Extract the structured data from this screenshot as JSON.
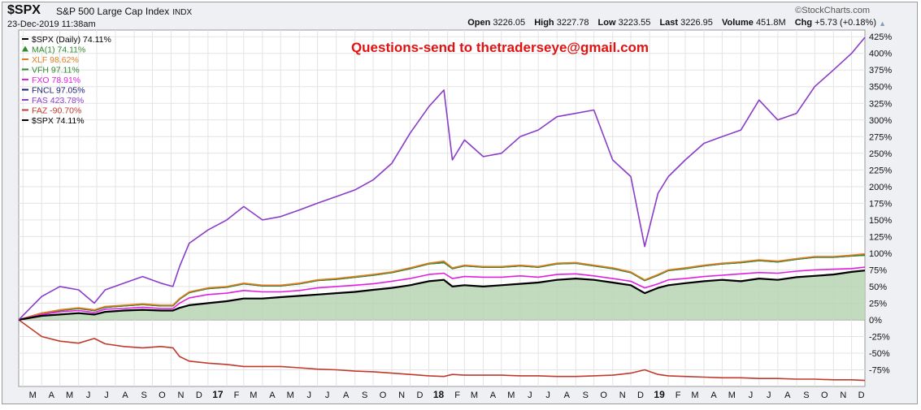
{
  "header": {
    "symbol": "$SPX",
    "index_name": "S&P 500 Large Cap Index",
    "exchange": "INDX",
    "datetime": "23-Dec-2019 11:38am",
    "brand": "©StockCharts.com",
    "ohlc": {
      "open_label": "Open",
      "open": "3226.05",
      "high_label": "High",
      "high": "3227.78",
      "low_label": "Low",
      "low": "3223.55",
      "last_label": "Last",
      "last": "3226.95",
      "volume_label": "Volume",
      "volume": "451.8M",
      "chg_label": "Chg",
      "chg": "+5.73 (+0.18%)"
    },
    "arrow_icon": "up-triangle-icon"
  },
  "annotation": "Questions-send to thetraderseye@gmail.com",
  "colors": {
    "spx": "#000000",
    "ma": "#2e8b2e",
    "xlf": "#e07b22",
    "vfh": "#2a8a2a",
    "fxo": "#e020e0",
    "fncl": "#1c1c6e",
    "fas": "#8a3cc8",
    "faz": "#c0392b",
    "area": "#b7d3b3",
    "annotation": "#e21212"
  },
  "chart_data": {
    "type": "line",
    "title": "$SPX S&P 500 Large Cap Index INDX",
    "x_range": [
      "2016-02-23",
      "2019-12-23"
    ],
    "y_unit": "%",
    "ylim": [
      -100,
      435
    ],
    "grid": true,
    "legend_placement": "top-left",
    "y_ticks": [
      "425%",
      "400%",
      "375%",
      "350%",
      "325%",
      "300%",
      "275%",
      "250%",
      "225%",
      "200%",
      "175%",
      "150%",
      "125%",
      "100%",
      "75%",
      "50%",
      "25%",
      "0%",
      "-25%",
      "-50%",
      "-75%"
    ],
    "x_ticks": [
      "M",
      "A",
      "M",
      "J",
      "J",
      "A",
      "S",
      "O",
      "N",
      "D",
      "17",
      "F",
      "M",
      "A",
      "M",
      "J",
      "J",
      "A",
      "S",
      "O",
      "N",
      "D",
      "18",
      "F",
      "M",
      "A",
      "M",
      "J",
      "J",
      "A",
      "S",
      "O",
      "N",
      "D",
      "19",
      "F",
      "M",
      "A",
      "M",
      "J",
      "J",
      "A",
      "S",
      "O",
      "N",
      "D"
    ],
    "x_ticks_bold": [
      "17",
      "18",
      "19"
    ],
    "legend": [
      {
        "key": "spx",
        "text": "$SPX (Daily) 74.11%",
        "marker": "dash"
      },
      {
        "key": "ma",
        "text": "MA(1) 74.11%",
        "marker": "triangle"
      },
      {
        "key": "xlf",
        "text": "XLF 98.62%",
        "marker": "dash"
      },
      {
        "key": "vfh",
        "text": "VFH 97.11%",
        "marker": "dash"
      },
      {
        "key": "fxo",
        "text": "FXO 78.91%",
        "marker": "dash"
      },
      {
        "key": "fncl",
        "text": "FNCL 97.05%",
        "marker": "dash"
      },
      {
        "key": "fas",
        "text": "FAS 423.78%",
        "marker": "dash"
      },
      {
        "key": "faz",
        "text": "FAZ -90.70%",
        "marker": "dash"
      },
      {
        "key": "spx2",
        "text": "$SPX 74.11%",
        "marker": "dash"
      }
    ],
    "x": [
      "2016-02-23",
      "2016-04-01",
      "2016-05-01",
      "2016-06-01",
      "2016-06-27",
      "2016-07-15",
      "2016-08-15",
      "2016-09-15",
      "2016-10-15",
      "2016-11-04",
      "2016-11-15",
      "2016-12-01",
      "2017-01-01",
      "2017-02-01",
      "2017-03-01",
      "2017-04-01",
      "2017-05-01",
      "2017-06-01",
      "2017-07-01",
      "2017-08-01",
      "2017-09-01",
      "2017-10-01",
      "2017-11-01",
      "2017-12-01",
      "2018-01-01",
      "2018-01-26",
      "2018-02-09",
      "2018-03-01",
      "2018-04-01",
      "2018-05-01",
      "2018-06-01",
      "2018-07-01",
      "2018-08-01",
      "2018-09-01",
      "2018-10-01",
      "2018-11-01",
      "2018-12-01",
      "2018-12-24",
      "2019-01-15",
      "2019-02-01",
      "2019-03-01",
      "2019-04-01",
      "2019-05-01",
      "2019-06-01",
      "2019-07-01",
      "2019-08-01",
      "2019-09-01",
      "2019-10-01",
      "2019-11-01",
      "2019-12-01",
      "2019-12-23"
    ],
    "series": [
      {
        "name": "FAS",
        "key": "fas",
        "values": [
          0,
          35,
          50,
          45,
          25,
          45,
          55,
          65,
          55,
          50,
          80,
          115,
          135,
          150,
          170,
          150,
          155,
          165,
          175,
          185,
          195,
          210,
          235,
          280,
          320,
          345,
          240,
          270,
          245,
          250,
          275,
          285,
          305,
          310,
          315,
          240,
          215,
          110,
          190,
          215,
          240,
          265,
          275,
          285,
          330,
          300,
          310,
          350,
          375,
          400,
          424
        ]
      },
      {
        "name": "XLF",
        "key": "xlf",
        "values": [
          0,
          10,
          15,
          18,
          15,
          20,
          22,
          24,
          22,
          22,
          32,
          42,
          48,
          50,
          55,
          52,
          52,
          55,
          60,
          62,
          65,
          68,
          72,
          78,
          85,
          88,
          78,
          82,
          80,
          80,
          82,
          80,
          85,
          86,
          82,
          78,
          72,
          60,
          68,
          75,
          78,
          82,
          85,
          87,
          90,
          88,
          92,
          95,
          95,
          97,
          99
        ]
      },
      {
        "name": "VFH",
        "key": "vfh",
        "values": [
          0,
          10,
          14,
          17,
          14,
          19,
          21,
          23,
          21,
          21,
          31,
          41,
          47,
          49,
          54,
          51,
          51,
          54,
          59,
          61,
          64,
          67,
          71,
          77,
          84,
          86,
          77,
          81,
          79,
          79,
          81,
          79,
          84,
          85,
          81,
          77,
          71,
          59,
          67,
          74,
          77,
          81,
          84,
          86,
          89,
          87,
          91,
          94,
          94,
          96,
          97
        ]
      },
      {
        "name": "FNCL",
        "key": "fncl",
        "values": [
          0,
          10,
          14,
          17,
          14,
          19,
          21,
          23,
          21,
          21,
          31,
          41,
          47,
          49,
          54,
          51,
          51,
          54,
          59,
          61,
          64,
          67,
          71,
          77,
          84,
          86,
          77,
          81,
          79,
          79,
          81,
          79,
          84,
          85,
          81,
          77,
          71,
          59,
          67,
          74,
          77,
          81,
          84,
          86,
          89,
          87,
          91,
          94,
          94,
          96,
          97
        ]
      },
      {
        "name": "FXO",
        "key": "fxo",
        "values": [
          0,
          8,
          12,
          14,
          11,
          16,
          17,
          19,
          17,
          17,
          25,
          33,
          38,
          40,
          44,
          42,
          42,
          44,
          48,
          50,
          52,
          54,
          58,
          62,
          68,
          70,
          62,
          65,
          64,
          64,
          66,
          64,
          68,
          69,
          66,
          62,
          58,
          48,
          54,
          60,
          62,
          65,
          67,
          69,
          71,
          70,
          73,
          75,
          76,
          77,
          79
        ]
      },
      {
        "name": "$SPX",
        "key": "spx",
        "values": [
          0,
          6,
          8,
          10,
          8,
          12,
          14,
          15,
          14,
          14,
          18,
          22,
          25,
          28,
          32,
          32,
          34,
          36,
          38,
          40,
          42,
          45,
          48,
          52,
          58,
          60,
          50,
          52,
          50,
          52,
          54,
          56,
          60,
          62,
          60,
          56,
          52,
          40,
          48,
          52,
          55,
          58,
          60,
          58,
          62,
          60,
          64,
          66,
          68,
          72,
          74
        ]
      },
      {
        "name": "FAZ",
        "key": "faz",
        "values": [
          0,
          -25,
          -32,
          -35,
          -28,
          -36,
          -40,
          -42,
          -40,
          -42,
          -55,
          -62,
          -65,
          -67,
          -70,
          -70,
          -70,
          -72,
          -74,
          -75,
          -77,
          -78,
          -80,
          -82,
          -84,
          -85,
          -82,
          -83,
          -83,
          -83,
          -84,
          -84,
          -85,
          -85,
          -84,
          -83,
          -80,
          -75,
          -82,
          -84,
          -85,
          -86,
          -87,
          -87,
          -88,
          -88,
          -89,
          -89,
          -90,
          -90,
          -91
        ]
      }
    ]
  }
}
